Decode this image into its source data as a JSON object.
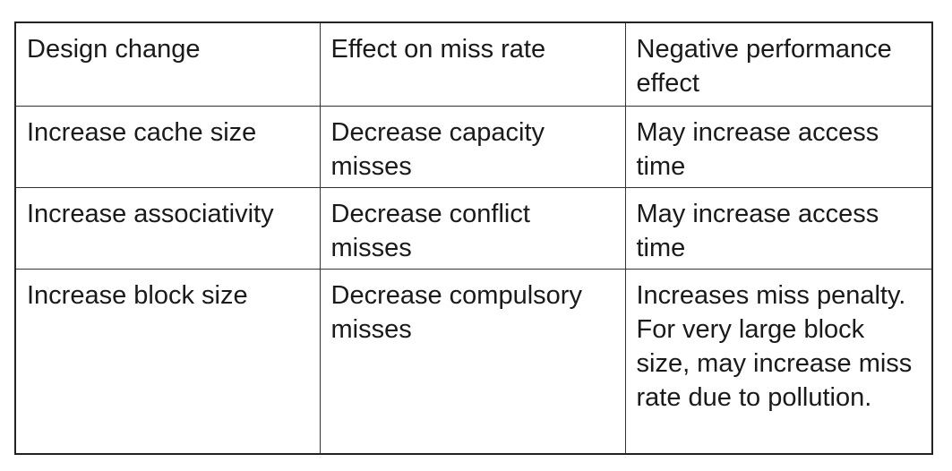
{
  "table": {
    "headers": [
      "Design change",
      "Effect on miss rate",
      "Negative performance effect"
    ],
    "rows": [
      {
        "design_change": "Increase cache size",
        "effect_on_miss_rate": "Decrease capacity misses",
        "negative_effect": "May increase access time"
      },
      {
        "design_change": "Increase associativity",
        "effect_on_miss_rate": "Decrease conflict misses",
        "negative_effect": "May increase access time"
      },
      {
        "design_change": "Increase block size",
        "effect_on_miss_rate": "Decrease compulsory misses",
        "negative_effect": "Increases miss penalty. For very large block size, may increase miss rate due to pollution."
      }
    ]
  }
}
